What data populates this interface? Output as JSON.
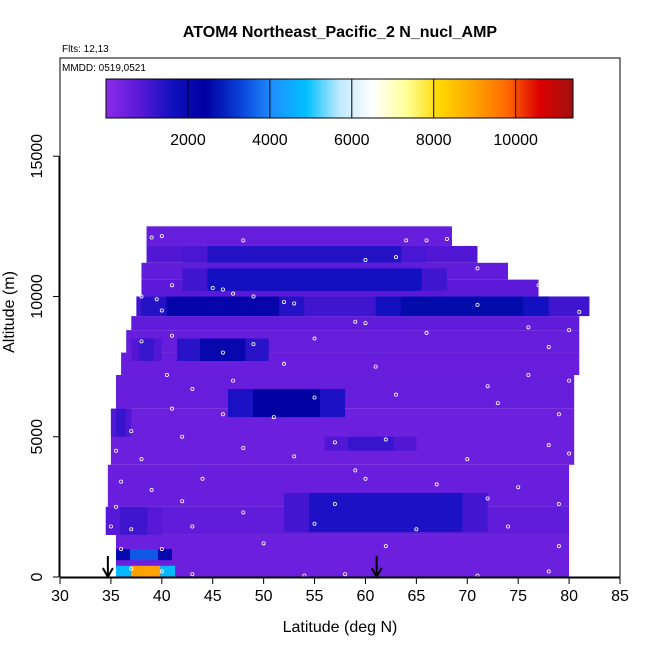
{
  "chart_data": {
    "type": "heatmap",
    "title": "ATOM4 Northeast_Pacific_2 N_nucl_AMP",
    "flights_note": "Flts: 12,13",
    "dates_note": "MMDD: 0519,0521",
    "xlabel": "Latitude (deg N)",
    "ylabel": "Altitude (m)",
    "xlim": [
      30,
      85
    ],
    "ylim": [
      0,
      18500
    ],
    "x_ticks": [
      "30",
      "35",
      "40",
      "45",
      "50",
      "55",
      "60",
      "65",
      "70",
      "75",
      "80",
      "85"
    ],
    "y_ticks": [
      "0",
      "5000",
      "10000",
      "15000"
    ],
    "y_tick_values": [
      0,
      5000,
      10000,
      15000
    ],
    "x_tick_values": [
      30,
      35,
      40,
      45,
      50,
      55,
      60,
      65,
      70,
      75,
      80,
      85
    ],
    "colorbar": {
      "min": 0,
      "max": 11400,
      "tick_labels": [
        "2000",
        "4000",
        "6000",
        "8000",
        "10000"
      ],
      "tick_values": [
        2000,
        4000,
        6000,
        8000,
        10000
      ],
      "colors": [
        "#8b2be8",
        "#5a18d8",
        "#1010c0",
        "#0000a0",
        "#0a3fd8",
        "#1e90ff",
        "#00bfff",
        "#bfe9ff",
        "#ffffff",
        "#ffff99",
        "#ffd700",
        "#ffa500",
        "#ff6a00",
        "#dd0000",
        "#a01010"
      ]
    },
    "markers": [
      {
        "label": "arrow",
        "latitude": 34.7
      },
      {
        "label": "arrow",
        "latitude": 61.1
      }
    ],
    "background_value": 500,
    "layers": [
      {
        "alt_lo": 11800,
        "alt_hi": 12500,
        "lat_lo": 38.5,
        "lat_hi": 68.5,
        "value": 600
      },
      {
        "alt_lo": 11200,
        "alt_hi": 11800,
        "lat_lo": 38.5,
        "lat_hi": 71,
        "value": 900
      },
      {
        "alt_lo": 10600,
        "alt_hi": 11200,
        "lat_lo": 38,
        "lat_hi": 74,
        "value": 700
      },
      {
        "alt_lo": 10000,
        "alt_hi": 10600,
        "lat_lo": 38,
        "lat_hi": 77,
        "value": 800
      },
      {
        "alt_lo": 9300,
        "alt_hi": 10000,
        "lat_lo": 37.5,
        "lat_hi": 82,
        "value": 1100
      },
      {
        "alt_lo": 8800,
        "alt_hi": 9300,
        "lat_lo": 37,
        "lat_hi": 81,
        "value": 700
      },
      {
        "alt_lo": 8000,
        "alt_hi": 8800,
        "lat_lo": 36.5,
        "lat_hi": 81,
        "value": 600
      },
      {
        "alt_lo": 7200,
        "alt_hi": 8000,
        "lat_lo": 36,
        "lat_hi": 81,
        "value": 550
      },
      {
        "alt_lo": 6000,
        "alt_hi": 7200,
        "lat_lo": 35.5,
        "lat_hi": 80.5,
        "value": 600
      },
      {
        "alt_lo": 4000,
        "alt_hi": 6000,
        "lat_lo": 35,
        "lat_hi": 80.5,
        "value": 500
      },
      {
        "alt_lo": 2500,
        "alt_hi": 4000,
        "lat_lo": 34.7,
        "lat_hi": 80,
        "value": 550
      },
      {
        "alt_lo": 1500,
        "alt_hi": 2500,
        "lat_lo": 34.5,
        "lat_hi": 80,
        "value": 700
      },
      {
        "alt_lo": 0,
        "alt_hi": 1500,
        "lat_lo": 35.5,
        "lat_hi": 80,
        "value": 500
      }
    ],
    "features": [
      {
        "alt_lo": 9300,
        "alt_hi": 10000,
        "lat_lo": 38,
        "lat_hi": 54,
        "value": 2200
      },
      {
        "alt_lo": 9300,
        "alt_hi": 10000,
        "lat_lo": 61,
        "lat_hi": 78,
        "value": 2600
      },
      {
        "alt_lo": 10200,
        "alt_hi": 11000,
        "lat_lo": 42,
        "lat_hi": 68,
        "value": 1600
      },
      {
        "alt_lo": 11200,
        "alt_hi": 11800,
        "lat_lo": 42,
        "lat_hi": 66,
        "value": 1400
      },
      {
        "alt_lo": 7700,
        "alt_hi": 8500,
        "lat_lo": 41.5,
        "lat_hi": 50.5,
        "value": 2100
      },
      {
        "alt_lo": 7700,
        "alt_hi": 8500,
        "lat_lo": 37,
        "lat_hi": 40,
        "value": 1200
      },
      {
        "alt_lo": 5700,
        "alt_hi": 6700,
        "lat_lo": 46.5,
        "lat_hi": 58,
        "value": 2400
      },
      {
        "alt_lo": 1600,
        "alt_hi": 3000,
        "lat_lo": 52,
        "lat_hi": 72,
        "value": 1500
      },
      {
        "alt_lo": 4500,
        "alt_hi": 5000,
        "lat_lo": 56,
        "lat_hi": 65,
        "value": 1200
      },
      {
        "alt_lo": 5000,
        "alt_hi": 6000,
        "lat_lo": 35,
        "lat_hi": 37,
        "value": 1200
      },
      {
        "alt_lo": 1500,
        "alt_hi": 2500,
        "lat_lo": 34.5,
        "lat_hi": 40,
        "value": 1100
      },
      {
        "alt_lo": 600,
        "alt_hi": 1000,
        "lat_lo": 35.5,
        "lat_hi": 41,
        "value": 3500
      },
      {
        "alt_lo": 0,
        "alt_hi": 400,
        "lat_lo": 35.5,
        "lat_hi": 41.3,
        "value": 9000
      }
    ],
    "sample_points": [
      {
        "lat": 39,
        "alt": 12100
      },
      {
        "lat": 40,
        "alt": 12150
      },
      {
        "lat": 48,
        "alt": 12000
      },
      {
        "lat": 64,
        "alt": 12000
      },
      {
        "lat": 66,
        "alt": 12000
      },
      {
        "lat": 68,
        "alt": 12050
      },
      {
        "lat": 63,
        "alt": 11400
      },
      {
        "lat": 60,
        "alt": 11300
      },
      {
        "lat": 71,
        "alt": 11000
      },
      {
        "lat": 77,
        "alt": 10400
      },
      {
        "lat": 41,
        "alt": 10400
      },
      {
        "lat": 45,
        "alt": 10300
      },
      {
        "lat": 46,
        "alt": 10250
      },
      {
        "lat": 47,
        "alt": 10100
      },
      {
        "lat": 49,
        "alt": 10000
      },
      {
        "lat": 38,
        "alt": 10000
      },
      {
        "lat": 39.5,
        "alt": 9900
      },
      {
        "lat": 52,
        "alt": 9800
      },
      {
        "lat": 53,
        "alt": 9750
      },
      {
        "lat": 71,
        "alt": 9700
      },
      {
        "lat": 81,
        "alt": 9450
      },
      {
        "lat": 40,
        "alt": 9500
      },
      {
        "lat": 59,
        "alt": 9100
      },
      {
        "lat": 60,
        "alt": 9050
      },
      {
        "lat": 76,
        "alt": 8900
      },
      {
        "lat": 80,
        "alt": 8800
      },
      {
        "lat": 41,
        "alt": 8600
      },
      {
        "lat": 38,
        "alt": 8400
      },
      {
        "lat": 46,
        "alt": 8000
      },
      {
        "lat": 49,
        "alt": 8300
      },
      {
        "lat": 55,
        "alt": 8500
      },
      {
        "lat": 66,
        "alt": 8700
      },
      {
        "lat": 78,
        "alt": 8200
      },
      {
        "lat": 40.5,
        "alt": 7200
      },
      {
        "lat": 52,
        "alt": 7600
      },
      {
        "lat": 61,
        "alt": 7500
      },
      {
        "lat": 76,
        "alt": 7200
      },
      {
        "lat": 43,
        "alt": 6700
      },
      {
        "lat": 47,
        "alt": 7000
      },
      {
        "lat": 55,
        "alt": 6400
      },
      {
        "lat": 63,
        "alt": 6500
      },
      {
        "lat": 72,
        "alt": 6800
      },
      {
        "lat": 80,
        "alt": 7000
      },
      {
        "lat": 41,
        "alt": 6000
      },
      {
        "lat": 46,
        "alt": 5800
      },
      {
        "lat": 51,
        "alt": 5700
      },
      {
        "lat": 73,
        "alt": 6200
      },
      {
        "lat": 79,
        "alt": 5800
      },
      {
        "lat": 37,
        "alt": 5200
      },
      {
        "lat": 42,
        "alt": 5000
      },
      {
        "lat": 48,
        "alt": 4600
      },
      {
        "lat": 57,
        "alt": 4800
      },
      {
        "lat": 62,
        "alt": 4900
      },
      {
        "lat": 78,
        "alt": 4700
      },
      {
        "lat": 35.5,
        "alt": 4500
      },
      {
        "lat": 38,
        "alt": 4200
      },
      {
        "lat": 53,
        "alt": 4300
      },
      {
        "lat": 59,
        "alt": 3800
      },
      {
        "lat": 70,
        "alt": 4200
      },
      {
        "lat": 80,
        "alt": 4400
      },
      {
        "lat": 36,
        "alt": 3400
      },
      {
        "lat": 39,
        "alt": 3100
      },
      {
        "lat": 44,
        "alt": 3500
      },
      {
        "lat": 60,
        "alt": 3500
      },
      {
        "lat": 67,
        "alt": 3300
      },
      {
        "lat": 75,
        "alt": 3200
      },
      {
        "lat": 35.5,
        "alt": 2500
      },
      {
        "lat": 42,
        "alt": 2700
      },
      {
        "lat": 48,
        "alt": 2300
      },
      {
        "lat": 57,
        "alt": 2600
      },
      {
        "lat": 72,
        "alt": 2800
      },
      {
        "lat": 79,
        "alt": 2600
      },
      {
        "lat": 35,
        "alt": 1800
      },
      {
        "lat": 37,
        "alt": 1700
      },
      {
        "lat": 43,
        "alt": 1800
      },
      {
        "lat": 55,
        "alt": 1900
      },
      {
        "lat": 65,
        "alt": 1700
      },
      {
        "lat": 74,
        "alt": 1800
      },
      {
        "lat": 36,
        "alt": 1000
      },
      {
        "lat": 40,
        "alt": 1000
      },
      {
        "lat": 50,
        "alt": 1200
      },
      {
        "lat": 62,
        "alt": 1100
      },
      {
        "lat": 79,
        "alt": 1100
      },
      {
        "lat": 37,
        "alt": 300
      },
      {
        "lat": 40,
        "alt": 200
      },
      {
        "lat": 43,
        "alt": 100
      },
      {
        "lat": 54,
        "alt": 50
      },
      {
        "lat": 58,
        "alt": 100
      },
      {
        "lat": 71,
        "alt": 50
      },
      {
        "lat": 78,
        "alt": 200
      }
    ]
  }
}
